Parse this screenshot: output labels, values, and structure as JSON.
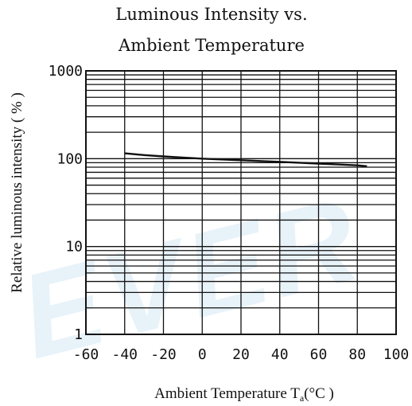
{
  "watermark_text": "EVER",
  "chart_data": {
    "type": "line",
    "title_line1": "Luminous Intensity vs.",
    "title_line2": "Ambient Temperature",
    "xlabel_main": "Ambient Temperature T",
    "xlabel_sub": "a",
    "xlabel_unit": "(°C )",
    "ylabel": "Relative luminous intensity ( % )",
    "x_scale": "linear",
    "y_scale": "log",
    "xlim": [
      -60,
      100
    ],
    "ylim": [
      1,
      1000
    ],
    "grid": true,
    "x_ticks": [
      -60,
      -40,
      -20,
      0,
      20,
      40,
      60,
      80,
      100
    ],
    "x_tick_labels": [
      "-60",
      "-40",
      "-20",
      "0",
      "20",
      "40",
      "60",
      "80",
      "100"
    ],
    "y_ticks": [
      1,
      10,
      100,
      1000
    ],
    "y_tick_labels": [
      "1",
      "10",
      "100",
      "1000"
    ],
    "series": [
      {
        "x": [
          -40,
          -30,
          -20,
          -10,
          0,
          10,
          20,
          30,
          40,
          50,
          60,
          70,
          80,
          85
        ],
        "y": [
          115,
          110,
          106,
          103,
          100,
          98,
          96,
          94,
          92,
          90,
          88,
          86,
          84,
          82
        ]
      }
    ]
  }
}
